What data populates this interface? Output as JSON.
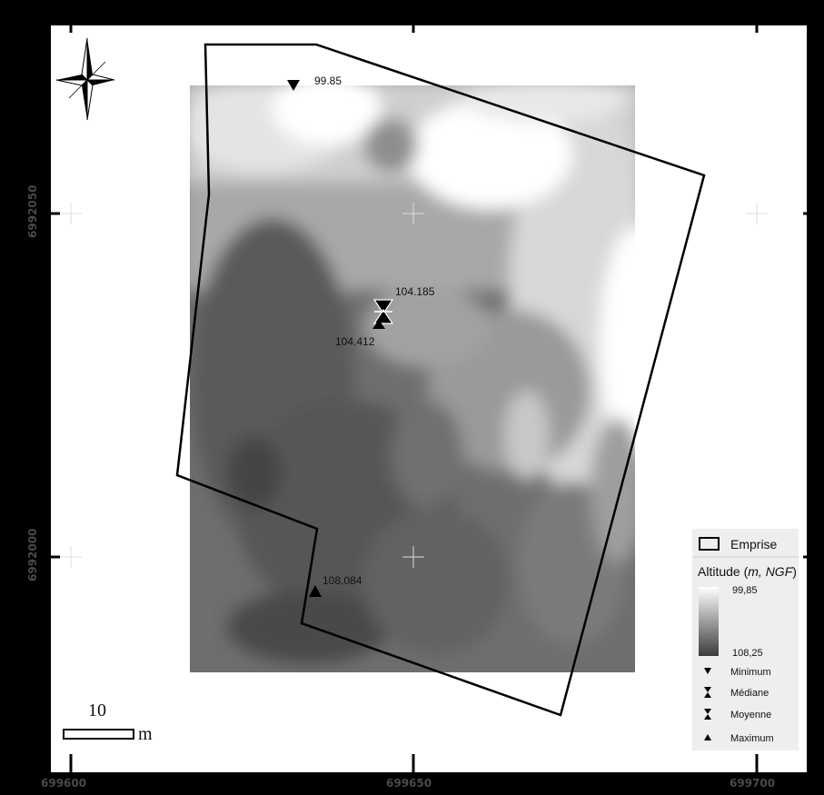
{
  "map": {
    "x_ticks": [
      "699600",
      "699650",
      "699700"
    ],
    "y_ticks": [
      "6992050",
      "6992000"
    ]
  },
  "points": {
    "minimum_value": "99.85",
    "median_value": "104.185",
    "mean_value": "104.412",
    "maximum_value": "108.084"
  },
  "legend": {
    "footprint_label": "Emprise",
    "altitude_title_prefix": "Altitude (",
    "altitude_title_units": "m, NGF",
    "altitude_title_suffix": ")",
    "ramp_min": "99,85",
    "ramp_max": "108,25",
    "minimum_label": "Minimum",
    "median_label": "Médiane",
    "mean_label": "Moyenne",
    "maximum_label": "Maximum",
    "ramp_colors": [
      "#ffffff",
      "#3c3c3c"
    ]
  },
  "scalebar": {
    "value": "10",
    "unit": "m"
  },
  "north_arrow": {
    "icon": "north-arrow-icon"
  }
}
